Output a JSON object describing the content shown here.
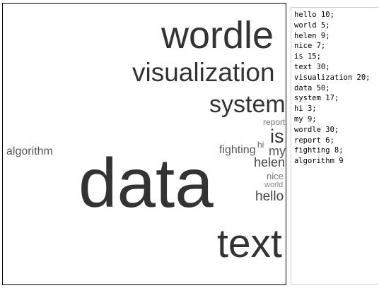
{
  "words": [
    {
      "id": "wordle",
      "text": "wordle",
      "color": "#333333"
    },
    {
      "id": "visualization",
      "text": "visualization",
      "color": "#333333"
    },
    {
      "id": "system",
      "text": "system",
      "color": "#333333"
    },
    {
      "id": "report",
      "text": "report",
      "color": "#777777"
    },
    {
      "id": "is",
      "text": "is",
      "color": "#333333"
    },
    {
      "id": "algorithm",
      "text": "algorithm",
      "color": "#555555"
    },
    {
      "id": "fighting",
      "text": "fighting",
      "color": "#555555"
    },
    {
      "id": "hi",
      "text": "hi",
      "color": "#666666"
    },
    {
      "id": "my",
      "text": "my",
      "color": "#555555"
    },
    {
      "id": "helen",
      "text": "helen",
      "color": "#444444"
    },
    {
      "id": "nice",
      "text": "nice",
      "color": "#777777"
    },
    {
      "id": "world",
      "text": "world",
      "color": "#888888"
    },
    {
      "id": "hello",
      "text": "hello",
      "color": "#444444"
    },
    {
      "id": "data",
      "text": "data",
      "color": "#333333"
    },
    {
      "id": "text",
      "text": "text",
      "color": "#333333"
    }
  ],
  "source_text": "hello 10;\nworld 5;\nhelen 9;\nnice 7;\nis 15;\ntext 30;\nvisualization 20;\ndata 50;\nsystem 17;\nhi 3;\nmy 9;\nwordle 30;\nreport 6;\nfighting 8;\nalgorithm 9"
}
